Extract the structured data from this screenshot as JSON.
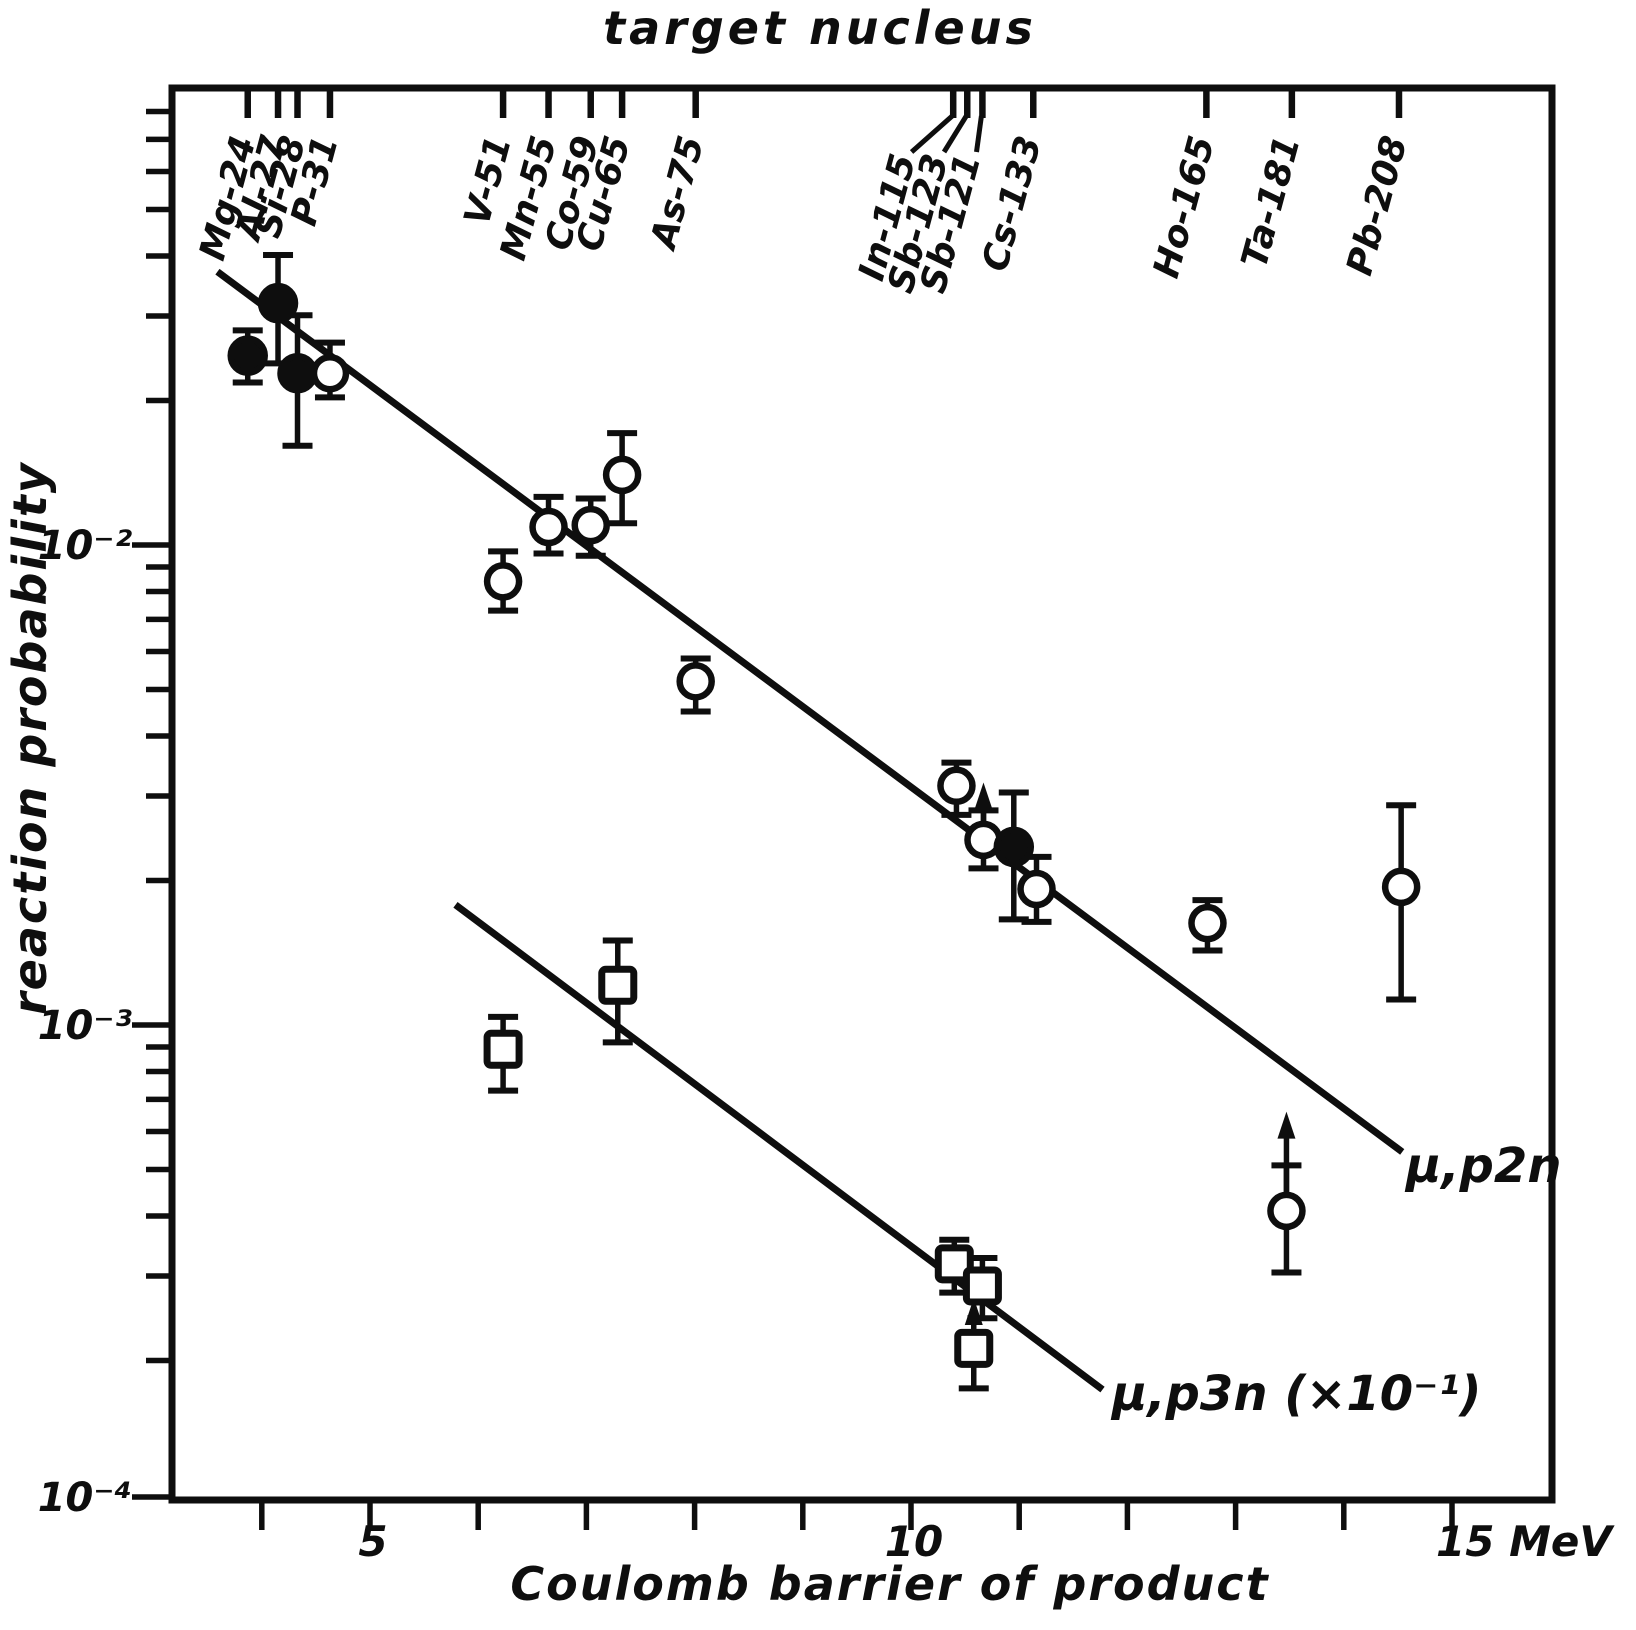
{
  "page": {
    "background": "#ffffff",
    "ink": "#0e0e0e"
  },
  "chart_data": {
    "type": "scatter",
    "top_axis_title": "target nucleus",
    "xlabel": "Coulomb barrier of product",
    "ylabel": "reaction probability",
    "x_unit": "MeV",
    "x_scale": "linear",
    "y_scale": "log",
    "xlim": [
      3.2,
      15.9
    ],
    "ylim": [
      0.0001,
      0.09
    ],
    "grid": false,
    "x_ticks_minor": [
      4,
      5,
      6,
      7,
      8,
      9,
      10,
      11,
      12,
      13,
      14,
      15
    ],
    "x_tick_labels": [
      {
        "value": 5,
        "label": "5"
      },
      {
        "value": 10,
        "label": "10"
      },
      {
        "value": 15,
        "label": "15 MeV"
      }
    ],
    "y_tick_labels": [
      {
        "value": 0.01,
        "label": "10⁻²"
      },
      {
        "value": 0.001,
        "label": "10⁻³"
      },
      {
        "value": 0.0001,
        "label": "10⁻⁴"
      }
    ],
    "top_axis_nuclei": [
      {
        "label": "Mg-24",
        "x": 3.87
      },
      {
        "label": "Al-27",
        "x": 4.15
      },
      {
        "label": "Si-28",
        "x": 4.33
      },
      {
        "label": "P-31",
        "x": 4.63
      },
      {
        "label": "V-51",
        "x": 6.23
      },
      {
        "label": "Mn-55",
        "x": 6.65
      },
      {
        "label": "Co-59",
        "x": 7.04
      },
      {
        "label": "Cu-65",
        "x": 7.33
      },
      {
        "label": "As-75",
        "x": 8.01
      },
      {
        "label": "In-115",
        "x": 10.39,
        "label_x": 9.95
      },
      {
        "label": "Sb-123",
        "x": 10.52,
        "label_x": 10.25
      },
      {
        "label": "Sb-121",
        "x": 10.66,
        "label_x": 10.55
      },
      {
        "label": "Cs-133",
        "x": 11.13
      },
      {
        "label": "Ho-165",
        "x": 12.73
      },
      {
        "label": "Ta-181",
        "x": 13.52
      },
      {
        "label": "Pb-208",
        "x": 14.51
      }
    ],
    "series": [
      {
        "name": "mu-p2n",
        "label": "μ,p2n",
        "marker": "circle",
        "points": [
          {
            "target": "Mg-24",
            "x": 3.87,
            "y": 0.0248,
            "y_hi": 0.028,
            "y_lo": 0.0218,
            "filled": true
          },
          {
            "target": "Al-27",
            "x": 4.15,
            "y": 0.0319,
            "y_hi": 0.0402,
            "y_lo": 0.0239,
            "filled": true
          },
          {
            "target": "Si-28",
            "x": 4.33,
            "y": 0.0228,
            "y_hi": 0.0301,
            "y_lo": 0.0161,
            "filled": true
          },
          {
            "target": "P-31",
            "x": 4.63,
            "y": 0.0228,
            "y_hi": 0.0264,
            "y_lo": 0.0203,
            "filled": false
          },
          {
            "target": "V-51",
            "x": 6.23,
            "y": 0.0084,
            "y_hi": 0.0097,
            "y_lo": 0.0073,
            "filled": false
          },
          {
            "target": "Mn-55",
            "x": 6.65,
            "y": 0.0109,
            "y_hi": 0.0126,
            "y_lo": 0.0096,
            "filled": false
          },
          {
            "target": "Co-59",
            "x": 7.04,
            "y": 0.011,
            "y_hi": 0.0125,
            "y_lo": 0.0095,
            "filled": false
          },
          {
            "target": "Cu-65",
            "x": 7.33,
            "y": 0.014,
            "y_hi": 0.0171,
            "y_lo": 0.0111,
            "filled": false
          },
          {
            "target": "As-75",
            "x": 8.01,
            "y": 0.0052,
            "y_hi": 0.0058,
            "y_lo": 0.0045,
            "filled": false
          },
          {
            "target": "In-115",
            "x": 10.42,
            "y": 0.00315,
            "y_hi": 0.00352,
            "y_lo": 0.00274,
            "filled": false
          },
          {
            "target": "Sb-121",
            "x": 10.67,
            "y": 0.00243,
            "y_hi": 0.0028,
            "y_lo": 0.00212,
            "filled": false,
            "arrow_to": 0.0032
          },
          {
            "target": "Sb-123",
            "x": 10.95,
            "y": 0.00235,
            "y_hi": 0.00305,
            "y_lo": 0.00166,
            "filled": true
          },
          {
            "target": "Cs-133",
            "x": 11.16,
            "y": 0.00192,
            "y_hi": 0.00224,
            "y_lo": 0.00164,
            "filled": false
          },
          {
            "target": "Ho-165",
            "x": 12.74,
            "y": 0.00163,
            "y_hi": 0.00182,
            "y_lo": 0.00143,
            "filled": false
          },
          {
            "target": "Ta-181",
            "x": 13.47,
            "y": 0.00041,
            "y_hi": 0.00051,
            "y_lo": 0.000305,
            "filled": false,
            "arrow_to": 0.00066
          },
          {
            "target": "Pb-208",
            "x": 14.53,
            "y": 0.00194,
            "y_hi": 0.00287,
            "y_lo": 0.00113,
            "filled": false
          }
        ]
      },
      {
        "name": "mu-p3n",
        "label": "μ,p3n (×10⁻¹)",
        "marker": "square",
        "points": [
          {
            "target": "V-51",
            "x": 6.23,
            "y": 0.00089,
            "y_hi": 0.00104,
            "y_lo": 0.00073,
            "filled": false
          },
          {
            "target": "Cu-65",
            "x": 7.29,
            "y": 0.00121,
            "y_hi": 0.0015,
            "y_lo": 0.00092,
            "filled": false
          },
          {
            "target": "In-115",
            "x": 10.4,
            "y": 0.000318,
            "y_hi": 0.000357,
            "y_lo": 0.000277,
            "filled": false
          },
          {
            "target": "Sb-123",
            "x": 10.58,
            "y": 0.000212,
            "y_lo": 0.000175,
            "filled": false,
            "arrow_to": 0.00027
          },
          {
            "target": "Sb-121",
            "x": 10.66,
            "y": 0.000286,
            "y_hi": 0.000327,
            "y_lo": 0.000245,
            "filled": false
          }
        ]
      }
    ],
    "fit_lines": [
      {
        "series": "mu-p2n",
        "x1": 3.59,
        "y1": 0.0371,
        "x2": 14.54,
        "y2": 0.000544
      },
      {
        "series": "mu-p3n",
        "x1": 5.79,
        "y1": 0.00178,
        "x2": 11.77,
        "y2": 0.000174
      }
    ],
    "legend_position": "labels-at-line-ends"
  }
}
